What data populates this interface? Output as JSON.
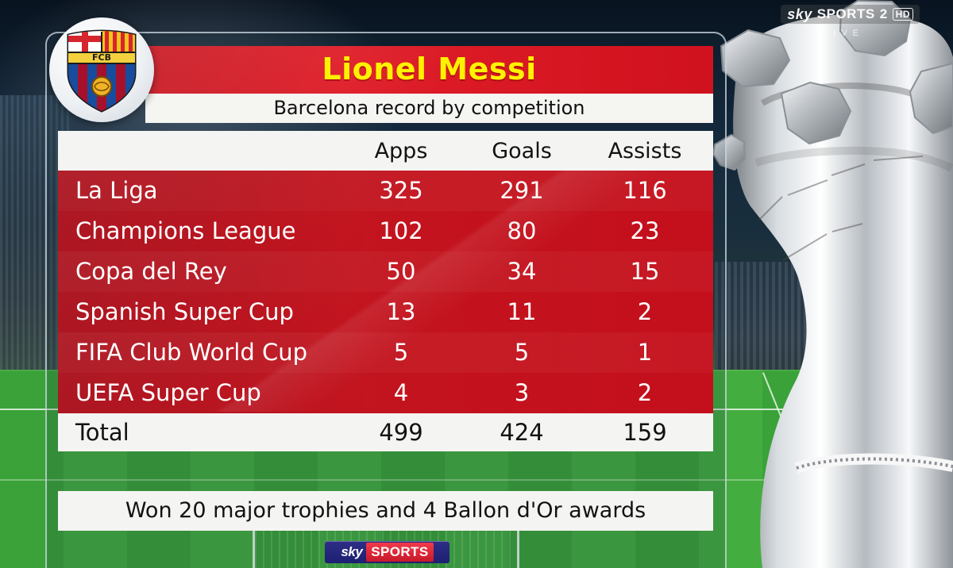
{
  "broadcast": {
    "channel_brand": "sky",
    "channel_name": "SPORTS",
    "channel_suffix": "2",
    "quality": "HD",
    "live_label": "LIVE",
    "bottom_brand": "sky",
    "bottom_channel": "SPORTS"
  },
  "club": {
    "badge_text": "FCB"
  },
  "graphic": {
    "title": "Lionel Messi",
    "subtitle": "Barcelona record by competition",
    "columns": {
      "label": "",
      "apps": "Apps",
      "goals": "Goals",
      "assists": "Assists"
    },
    "rows": [
      {
        "label": "La Liga",
        "apps": "325",
        "goals": "291",
        "assists": "116"
      },
      {
        "label": "Champions League",
        "apps": "102",
        "goals": "80",
        "assists": "23"
      },
      {
        "label": "Copa del Rey",
        "apps": "50",
        "goals": "34",
        "assists": "15"
      },
      {
        "label": "Spanish Super Cup",
        "apps": "13",
        "goals": "11",
        "assists": "2"
      },
      {
        "label": "FIFA Club World Cup",
        "apps": "5",
        "goals": "5",
        "assists": "1"
      },
      {
        "label": "UEFA Super Cup",
        "apps": "4",
        "goals": "3",
        "assists": "2"
      }
    ],
    "total": {
      "label": "Total",
      "apps": "499",
      "goals": "424",
      "assists": "159"
    },
    "footer_note": "Won 20 major trophies and 4 Ballon d'Or awards"
  },
  "colors": {
    "title_yellow": "#fff200",
    "band_red": "#d0121e",
    "table_light": "#f4f4f2"
  }
}
